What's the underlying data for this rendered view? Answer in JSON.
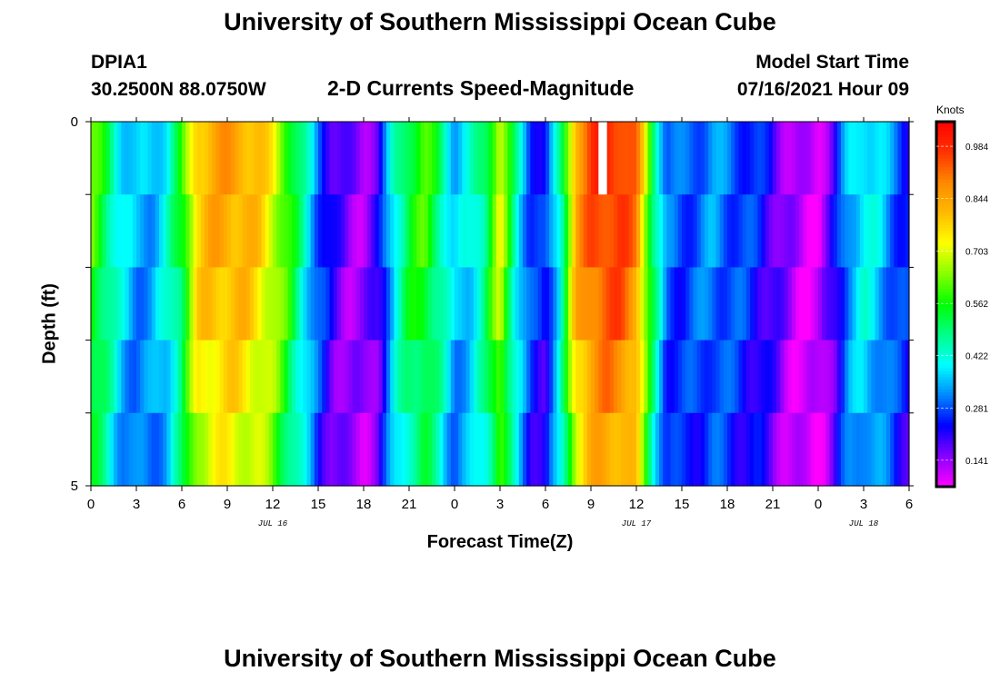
{
  "page": {
    "title_top": "University of Southern Mississippi Ocean Cube",
    "title_bottom": "University of Southern Mississippi Ocean Cube",
    "station_id": "DPIA1",
    "coords": "30.2500N  88.0750W",
    "plot_title": "2-D Currents Speed-Magnitude",
    "model_start_label": "Model Start Time",
    "model_start_value": "07/16/2021 Hour 09"
  },
  "chart_data": {
    "type": "heatmap",
    "title": "2-D Currents Speed-Magnitude",
    "xlabel": "Forecast Time(Z)",
    "ylabel": "Depth (ft)",
    "x_tick_labels": [
      "0",
      "3",
      "6",
      "9",
      "12",
      "15",
      "18",
      "21",
      "0",
      "3",
      "6",
      "9",
      "12",
      "15",
      "18",
      "21",
      "0",
      "3",
      "6"
    ],
    "date_labels": [
      {
        "text": "JUL 16",
        "at_tick": 4
      },
      {
        "text": "JUL 17",
        "at_tick": 12
      },
      {
        "text": "JUL 18",
        "at_tick": 17
      }
    ],
    "y_tick_labels": [
      "0",
      "5"
    ],
    "ylim": [
      0,
      5
    ],
    "x_hours": [
      0,
      54
    ],
    "depth_levels": 5,
    "colorbar": {
      "unit": "Knots",
      "ticks": [
        "0.984",
        "0.844",
        "0.703",
        "0.562",
        "0.422",
        "0.281",
        "0.141"
      ],
      "tick_values": [
        0.984,
        0.844,
        0.703,
        0.562,
        0.422,
        0.281,
        0.141
      ],
      "vmin": 0.07,
      "vmax": 1.05,
      "colors": [
        "#ff00ff",
        "#8800ff",
        "#0000ff",
        "#0088ff",
        "#00ffff",
        "#00ff88",
        "#00ff00",
        "#88ff00",
        "#ffff00",
        "#ffbb00",
        "#ff8800",
        "#ff3300",
        "#ff0000"
      ]
    },
    "speed_profile": [
      [
        0,
        0.62
      ],
      [
        1,
        0.52
      ],
      [
        2,
        0.4
      ],
      [
        3,
        0.34
      ],
      [
        4,
        0.35
      ],
      [
        5,
        0.42
      ],
      [
        6,
        0.55
      ],
      [
        7,
        0.8
      ],
      [
        8,
        0.84
      ],
      [
        9,
        0.85
      ],
      [
        10,
        0.84
      ],
      [
        11,
        0.8
      ],
      [
        12,
        0.72
      ],
      [
        13,
        0.6
      ],
      [
        14,
        0.45
      ],
      [
        15,
        0.3
      ],
      [
        16,
        0.2
      ],
      [
        17,
        0.15
      ],
      [
        18,
        0.14
      ],
      [
        19,
        0.2
      ],
      [
        20,
        0.42
      ],
      [
        21,
        0.55
      ],
      [
        22,
        0.6
      ],
      [
        23,
        0.5
      ],
      [
        24,
        0.36
      ],
      [
        25,
        0.4
      ],
      [
        26,
        0.5
      ],
      [
        27,
        0.72
      ],
      [
        28,
        0.45
      ],
      [
        29,
        0.28
      ],
      [
        30,
        0.24
      ],
      [
        31,
        0.45
      ],
      [
        32,
        0.85
      ],
      [
        33,
        0.95
      ],
      [
        34,
        0.99
      ],
      [
        35,
        0.98
      ],
      [
        36,
        0.9
      ],
      [
        37,
        0.55
      ],
      [
        38,
        0.3
      ],
      [
        39,
        0.28
      ],
      [
        40,
        0.3
      ],
      [
        41,
        0.33
      ],
      [
        42,
        0.3
      ],
      [
        43,
        0.28
      ],
      [
        44,
        0.25
      ],
      [
        45,
        0.2
      ],
      [
        46,
        0.14
      ],
      [
        47,
        0.1
      ],
      [
        48,
        0.1
      ],
      [
        49,
        0.2
      ],
      [
        50,
        0.35
      ],
      [
        51,
        0.42
      ],
      [
        52,
        0.38
      ],
      [
        53,
        0.3
      ],
      [
        54,
        0.25
      ]
    ],
    "depth_factor": [
      1.0,
      0.98,
      0.95,
      0.9,
      0.85
    ],
    "missing_cell": {
      "hour_start": 33.5,
      "hour_end": 34.0,
      "depth_level": 0
    }
  }
}
